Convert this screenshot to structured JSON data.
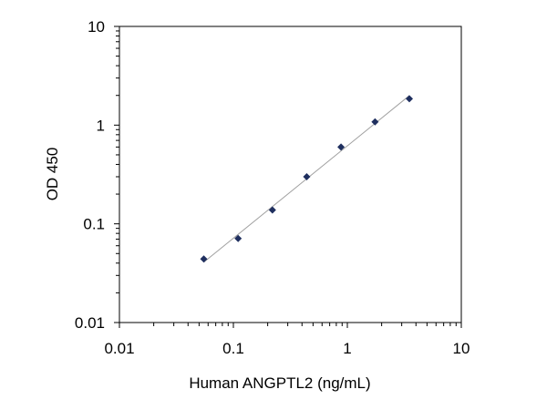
{
  "chart_data": {
    "type": "scatter",
    "title": "",
    "xlabel": "Human ANGPTL2 (ng/mL)",
    "ylabel": "OD 450",
    "x_scale": "log",
    "y_scale": "log",
    "xlim": [
      0.01,
      10
    ],
    "ylim": [
      0.01,
      10
    ],
    "x_ticks": [
      {
        "value": 0.01,
        "label": "0.01"
      },
      {
        "value": 0.1,
        "label": "0.1"
      },
      {
        "value": 1,
        "label": "1"
      },
      {
        "value": 10,
        "label": "10"
      }
    ],
    "y_ticks": [
      {
        "value": 0.01,
        "label": "0.01"
      },
      {
        "value": 0.1,
        "label": "0.1"
      },
      {
        "value": 1,
        "label": "1"
      },
      {
        "value": 10,
        "label": "10"
      }
    ],
    "grid": false,
    "legend": "none",
    "marker_color": "#1f2f5f",
    "trendline_color": "#a0a0a0",
    "series": [
      {
        "points": [
          {
            "x": 0.055,
            "y": 0.044
          },
          {
            "x": 0.11,
            "y": 0.071
          },
          {
            "x": 0.22,
            "y": 0.138
          },
          {
            "x": 0.44,
            "y": 0.3
          },
          {
            "x": 0.88,
            "y": 0.6
          },
          {
            "x": 1.75,
            "y": 1.08
          },
          {
            "x": 3.5,
            "y": 1.85
          }
        ]
      }
    ],
    "trendline": {
      "type": "power",
      "x_start": 0.055,
      "x_end": 3.5
    }
  }
}
